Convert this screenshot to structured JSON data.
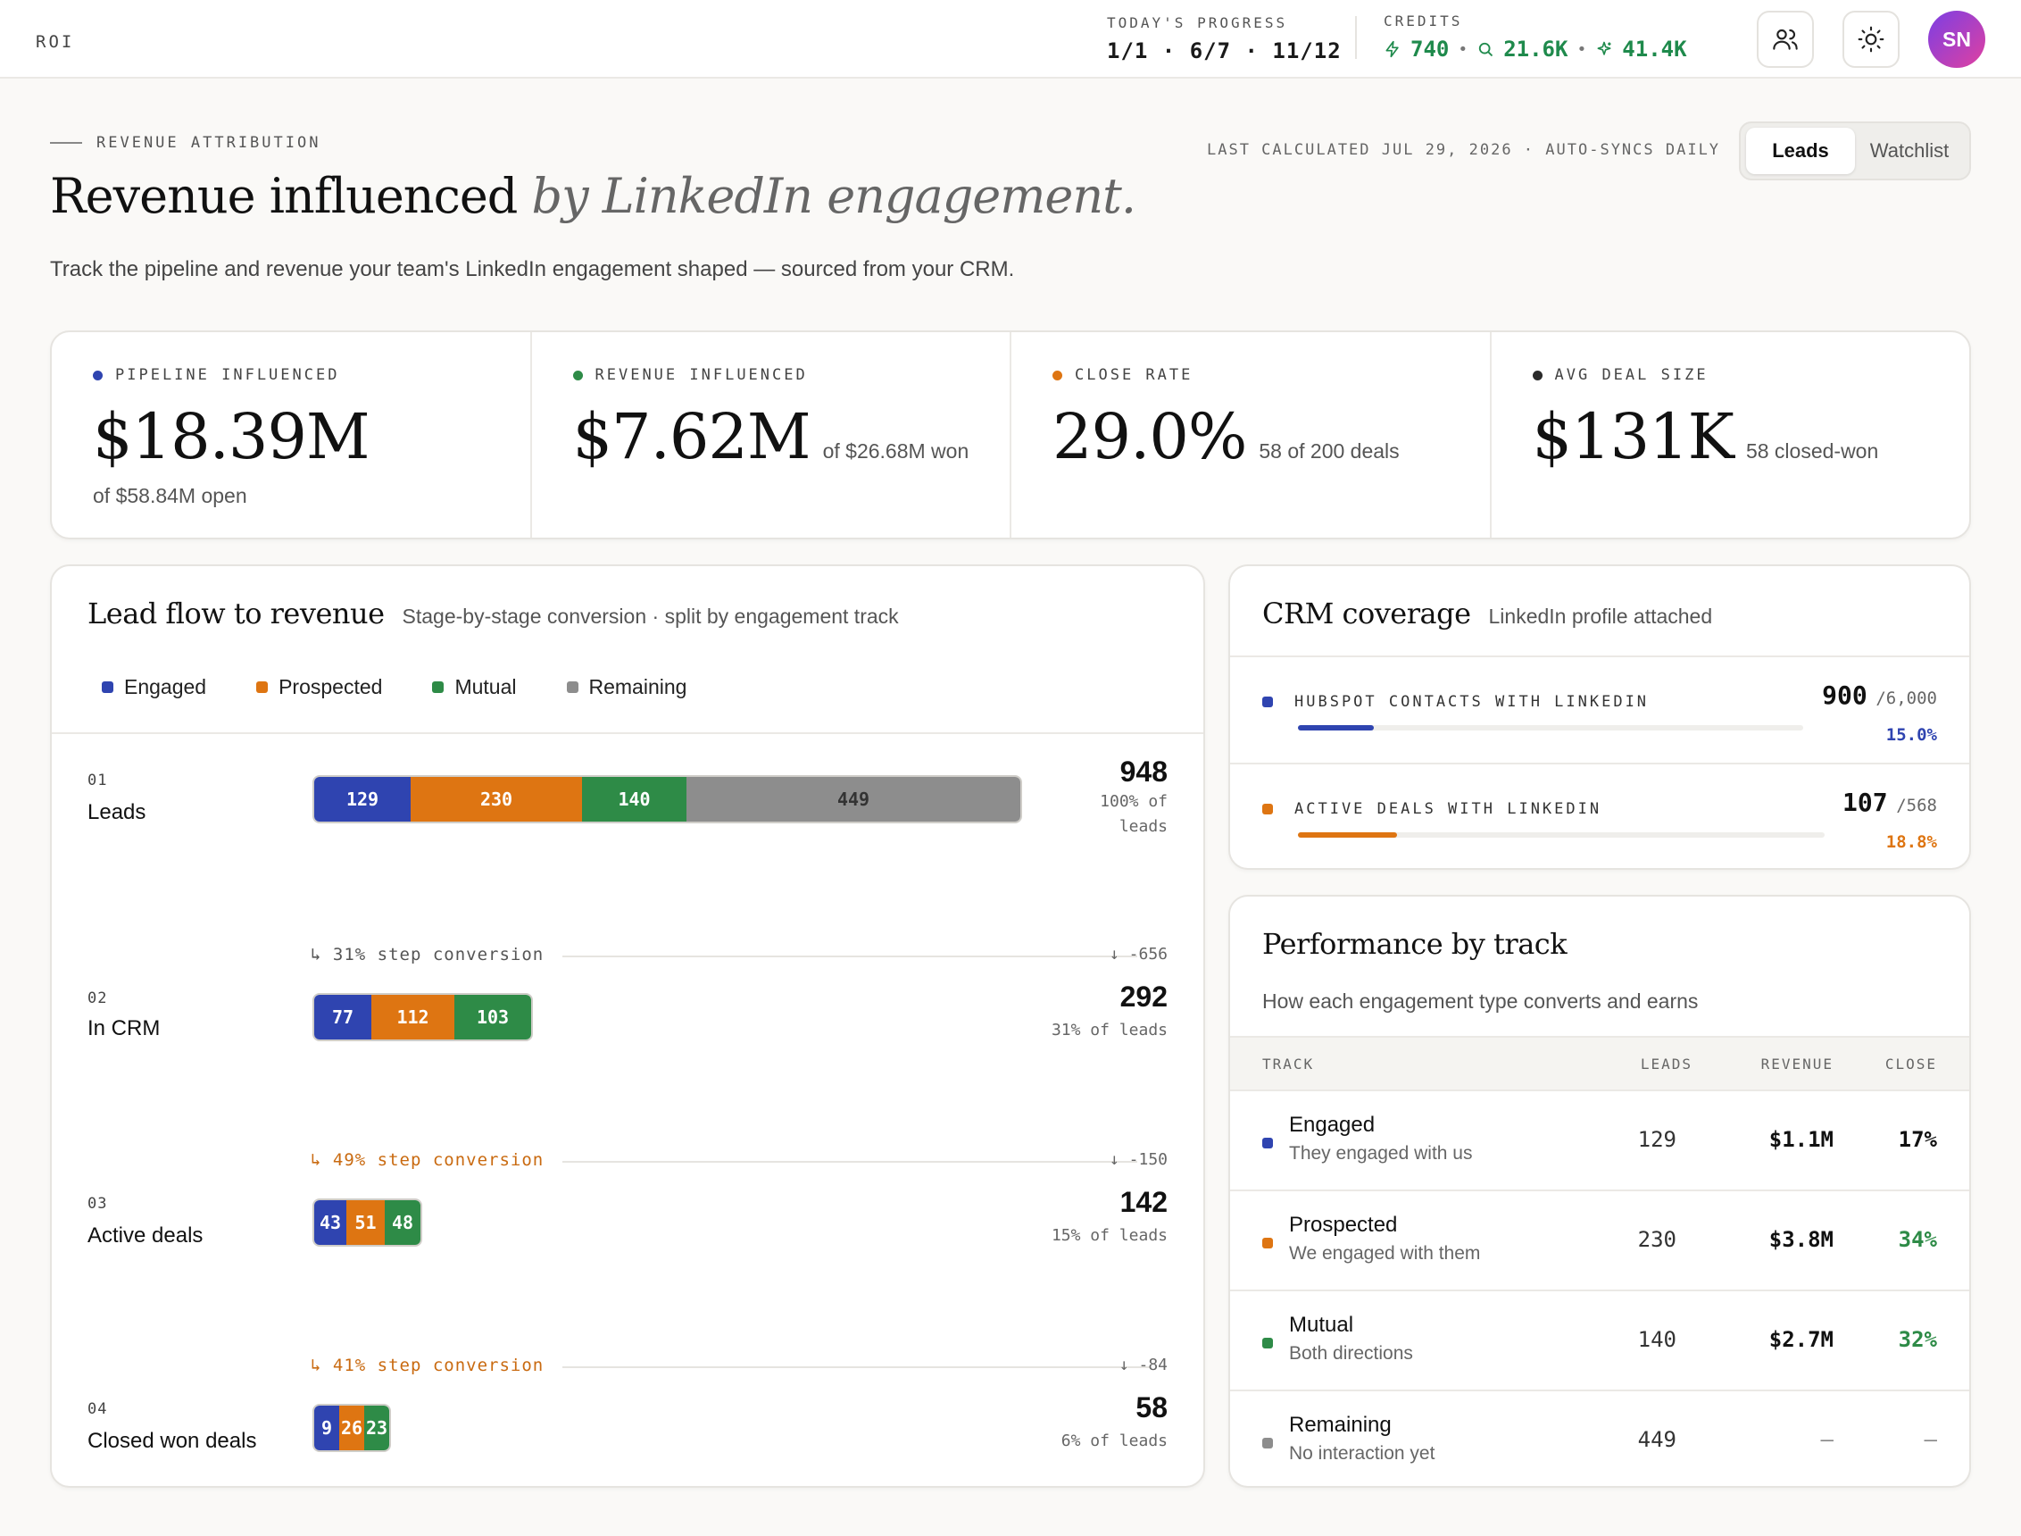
{
  "app": {
    "brand": "ROI"
  },
  "topbar": {
    "progress_label": "TODAY'S PROGRESS",
    "progress_values": "1/1 · 6/7 · 11/12",
    "credits_label": "CREDITS",
    "credits": {
      "a": "740",
      "b": "21.6K",
      "c": "41.4K"
    },
    "avatar_initials": "SN"
  },
  "header": {
    "eyebrow": "REVENUE ATTRIBUTION",
    "title_main": "Revenue influenced",
    "title_italic": "by LinkedIn engagement.",
    "description": "Track the pipeline and revenue your team's LinkedIn engagement shaped — sourced from your CRM.",
    "last_calculated": "LAST CALCULATED JUL 29, 2026 · AUTO-SYNCS DAILY",
    "tabs": [
      {
        "label": "Leads"
      },
      {
        "label": "Watchlist"
      }
    ]
  },
  "colors": {
    "engaged": "#2f44b0",
    "prospected": "#de7512",
    "mutual": "#2e8b47",
    "remaining": "#8d8d8d",
    "neutral": "#2a2a2a"
  },
  "kpis": [
    {
      "label": "PIPELINE INFLUENCED",
      "value": "$18.39M",
      "note": "",
      "sub": "of $58.84M open"
    },
    {
      "label": "REVENUE INFLUENCED",
      "value": "$7.62M",
      "note": "of $26.68M won",
      "sub": ""
    },
    {
      "label": "CLOSE RATE",
      "value": "29.0%",
      "note": "58 of 200 deals",
      "sub": ""
    },
    {
      "label": "AVG DEAL SIZE",
      "value": "$131K",
      "note": "58 closed-won",
      "sub": ""
    }
  ],
  "flow": {
    "title": "Lead flow to revenue",
    "subtitle": "Stage-by-stage conversion · split by engagement track",
    "legend": [
      "Engaged",
      "Prospected",
      "Mutual",
      "Remaining"
    ],
    "stages": [
      {
        "num": "01",
        "name": "Leads",
        "total": "948",
        "pct": "100% of leads",
        "segments": [
          129,
          230,
          140,
          449
        ]
      },
      {
        "num": "02",
        "name": "In CRM",
        "total": "292",
        "pct": "31% of leads",
        "segments": [
          77,
          112,
          103
        ]
      },
      {
        "num": "03",
        "name": "Active deals",
        "total": "142",
        "pct": "15% of leads",
        "segments": [
          43,
          51,
          48
        ]
      },
      {
        "num": "04",
        "name": "Closed won deals",
        "total": "58",
        "pct": "6% of leads",
        "segments": [
          9,
          26,
          23
        ]
      }
    ],
    "conversions": [
      {
        "label": "↳ 31% step conversion",
        "delta": "↓ -656"
      },
      {
        "label": "↳ 49% step conversion",
        "delta": "↓ -150"
      },
      {
        "label": "↳ 41% step conversion",
        "delta": "↓ -84"
      }
    ]
  },
  "crm": {
    "title": "CRM coverage",
    "subtitle": "LinkedIn profile attached",
    "rows": [
      {
        "label": "HUBSPOT CONTACTS WITH LINKEDIN",
        "value": "900",
        "of": "/6,000",
        "pct": "15.0%",
        "fraction": 0.15
      },
      {
        "label": "ACTIVE DEALS WITH LINKEDIN",
        "value": "107",
        "of": "/568",
        "pct": "18.8%",
        "fraction": 0.188
      }
    ]
  },
  "performance": {
    "title": "Performance by track",
    "subtitle": "How each engagement type converts and earns",
    "headers": {
      "track": "TRACK",
      "leads": "LEADS",
      "revenue": "REVENUE",
      "close": "CLOSE"
    },
    "rows": [
      {
        "name": "Engaged",
        "desc": "They engaged with us",
        "leads": "129",
        "revenue": "$1.1M",
        "close": "17%"
      },
      {
        "name": "Prospected",
        "desc": "We engaged with them",
        "leads": "230",
        "revenue": "$3.8M",
        "close": "34%"
      },
      {
        "name": "Mutual",
        "desc": "Both directions",
        "leads": "140",
        "revenue": "$2.7M",
        "close": "32%"
      },
      {
        "name": "Remaining",
        "desc": "No interaction yet",
        "leads": "449",
        "revenue": "–",
        "close": "–"
      }
    ]
  }
}
